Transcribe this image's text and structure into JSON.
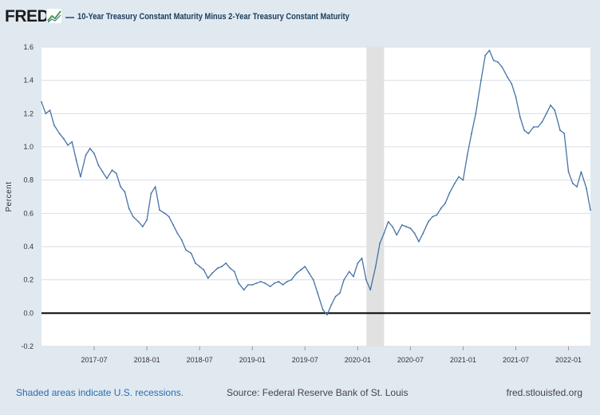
{
  "header": {
    "logo_text": "FRED",
    "logo_icon": "chart-line-icon",
    "series_label": "10-Year Treasury Constant Maturity Minus 2-Year Treasury Constant Maturity"
  },
  "footer": {
    "recession_note": "Shaded areas indicate U.S. recessions.",
    "source": "Source: Federal Reserve Bank of St. Louis",
    "url": "fred.stlouisfed.org"
  },
  "colors": {
    "background": "#e1e9f0",
    "plot": "#ffffff",
    "grid": "#dadee3",
    "series": "#4572a7",
    "recession": "#e1e1e1",
    "zero_line": "#000000"
  },
  "chart_data": {
    "type": "line",
    "title": "10-Year Treasury Constant Maturity Minus 2-Year Treasury Constant Maturity",
    "xlabel": "",
    "ylabel": "Percent",
    "x_range": [
      2017.0,
      2022.208
    ],
    "ylim": [
      -0.2,
      1.6
    ],
    "y_ticks": [
      -0.2,
      0.0,
      0.2,
      0.4,
      0.6,
      0.8,
      1.0,
      1.2,
      1.4,
      1.6
    ],
    "y_tick_labels": [
      "-0.2",
      "0.0",
      "0.2",
      "0.4",
      "0.6",
      "0.8",
      "1.0",
      "1.2",
      "1.4",
      "1.6"
    ],
    "x_ticks": [
      2017.5,
      2018.0,
      2018.5,
      2019.0,
      2019.5,
      2020.0,
      2020.5,
      2021.0,
      2021.5,
      2022.0
    ],
    "x_tick_labels": [
      "2017-07",
      "2018-01",
      "2018-07",
      "2019-01",
      "2019-07",
      "2020-01",
      "2020-07",
      "2021-01",
      "2021-07",
      "2022-01"
    ],
    "grid": true,
    "recessions": [
      {
        "start": 2020.083,
        "end": 2020.25
      }
    ],
    "reference_lines": [
      {
        "y": 0.0
      }
    ],
    "series": [
      {
        "name": "10-Year Treasury Constant Maturity Minus 2-Year Treasury Constant Maturity",
        "x": [
          2017.0,
          2017.04,
          2017.08,
          2017.12,
          2017.17,
          2017.21,
          2017.25,
          2017.29,
          2017.33,
          2017.37,
          2017.42,
          2017.46,
          2017.5,
          2017.54,
          2017.58,
          2017.62,
          2017.67,
          2017.71,
          2017.75,
          2017.79,
          2017.83,
          2017.87,
          2017.92,
          2017.96,
          2018.0,
          2018.04,
          2018.08,
          2018.12,
          2018.17,
          2018.21,
          2018.25,
          2018.29,
          2018.33,
          2018.37,
          2018.42,
          2018.46,
          2018.5,
          2018.54,
          2018.58,
          2018.62,
          2018.67,
          2018.71,
          2018.75,
          2018.79,
          2018.83,
          2018.87,
          2018.92,
          2018.96,
          2019.0,
          2019.04,
          2019.08,
          2019.12,
          2019.17,
          2019.21,
          2019.25,
          2019.29,
          2019.33,
          2019.37,
          2019.42,
          2019.46,
          2019.5,
          2019.54,
          2019.58,
          2019.62,
          2019.67,
          2019.71,
          2019.75,
          2019.79,
          2019.83,
          2019.87,
          2019.92,
          2019.96,
          2020.0,
          2020.04,
          2020.08,
          2020.12,
          2020.17,
          2020.21,
          2020.25,
          2020.29,
          2020.33,
          2020.37,
          2020.42,
          2020.46,
          2020.5,
          2020.54,
          2020.58,
          2020.62,
          2020.67,
          2020.71,
          2020.75,
          2020.79,
          2020.83,
          2020.87,
          2020.92,
          2020.96,
          2021.0,
          2021.04,
          2021.08,
          2021.12,
          2021.17,
          2021.21,
          2021.25,
          2021.29,
          2021.33,
          2021.37,
          2021.42,
          2021.46,
          2021.5,
          2021.54,
          2021.58,
          2021.62,
          2021.67,
          2021.71,
          2021.75,
          2021.79,
          2021.83,
          2021.87,
          2021.92,
          2021.96,
          2022.0,
          2022.04,
          2022.08,
          2022.12,
          2022.17,
          2022.208
        ],
        "values": [
          1.27,
          1.2,
          1.22,
          1.13,
          1.08,
          1.05,
          1.01,
          1.03,
          0.92,
          0.82,
          0.95,
          0.99,
          0.96,
          0.89,
          0.85,
          0.81,
          0.86,
          0.84,
          0.76,
          0.73,
          0.63,
          0.58,
          0.55,
          0.52,
          0.56,
          0.72,
          0.76,
          0.62,
          0.6,
          0.58,
          0.53,
          0.48,
          0.44,
          0.38,
          0.36,
          0.3,
          0.28,
          0.26,
          0.21,
          0.24,
          0.27,
          0.28,
          0.3,
          0.27,
          0.25,
          0.18,
          0.14,
          0.17,
          0.17,
          0.18,
          0.19,
          0.18,
          0.16,
          0.18,
          0.19,
          0.17,
          0.19,
          0.2,
          0.24,
          0.26,
          0.28,
          0.24,
          0.2,
          0.12,
          0.02,
          -0.01,
          0.05,
          0.1,
          0.12,
          0.2,
          0.25,
          0.22,
          0.3,
          0.33,
          0.2,
          0.14,
          0.28,
          0.42,
          0.48,
          0.55,
          0.52,
          0.47,
          0.53,
          0.52,
          0.51,
          0.48,
          0.43,
          0.48,
          0.55,
          0.58,
          0.59,
          0.63,
          0.66,
          0.72,
          0.78,
          0.82,
          0.8,
          0.95,
          1.08,
          1.2,
          1.4,
          1.55,
          1.58,
          1.52,
          1.51,
          1.48,
          1.42,
          1.38,
          1.3,
          1.18,
          1.1,
          1.08,
          1.12,
          1.12,
          1.15,
          1.2,
          1.25,
          1.22,
          1.1,
          1.08,
          0.85,
          0.78,
          0.76,
          0.85,
          0.75,
          0.62
        ]
      }
    ]
  }
}
